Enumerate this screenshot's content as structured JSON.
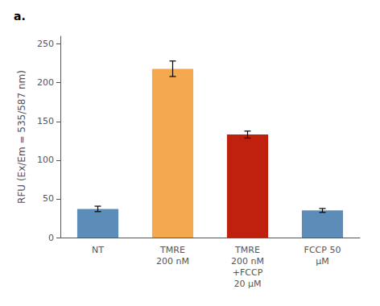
{
  "chart_data": {
    "type": "bar",
    "title": "a.",
    "categories": [
      "NT",
      "TMRE\n200 nM",
      "TMRE\n200 nM\n+FCCP\n20 μM",
      "FCCP 50\nμM"
    ],
    "values": [
      37,
      218,
      133,
      35
    ],
    "errors": [
      3.5,
      10,
      4.5,
      2.5
    ],
    "colors": [
      "#5b8db8",
      "#f5a94e",
      "#c0200e",
      "#5b8db8"
    ],
    "ylabel": "RFU (Ex/Em = 535/587 nm)",
    "ylim": [
      0,
      260
    ],
    "yticks": [
      0,
      50,
      100,
      150,
      200,
      250
    ],
    "grid": false
  }
}
